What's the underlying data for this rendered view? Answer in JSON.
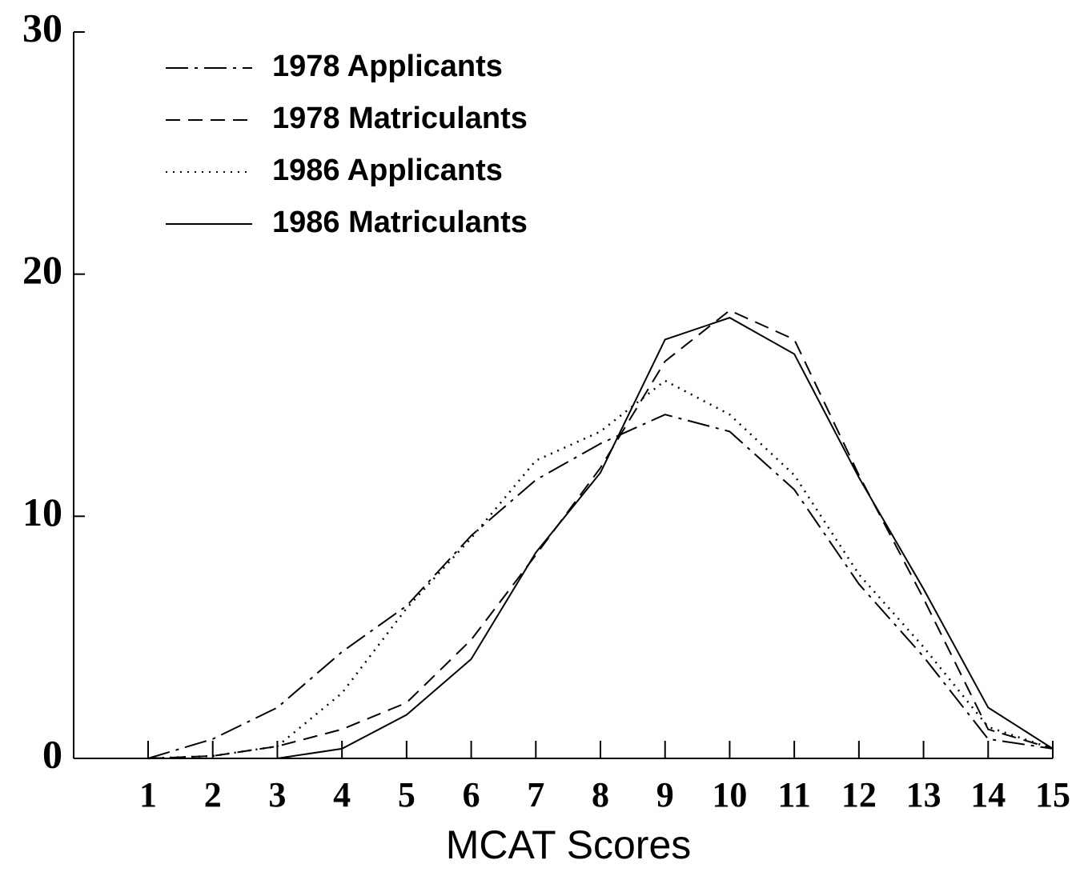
{
  "chart_data": {
    "type": "line",
    "x_label": "MCAT Scores",
    "categories": [
      "1",
      "2",
      "3",
      "4",
      "5",
      "6",
      "7",
      "8",
      "9",
      "10",
      "11",
      "12",
      "13",
      "14",
      "15"
    ],
    "series": [
      {
        "name": "1978 Applicants",
        "color": "#000000",
        "style": "dash-dot",
        "values": [
          0,
          0.8,
          2.1,
          4.4,
          6.3,
          9.2,
          11.5,
          13.0,
          14.2,
          13.5,
          11.1,
          7.2,
          4.2,
          0.8,
          0.4
        ]
      },
      {
        "name": "1978 Matriculants",
        "color": "#000000",
        "style": "dashed",
        "values": [
          0,
          0.1,
          0.5,
          1.2,
          2.3,
          4.9,
          8.4,
          12.0,
          16.4,
          18.5,
          17.3,
          11.7,
          6.6,
          1.2,
          0.4
        ]
      },
      {
        "name": "1986 Applicants",
        "color": "#000000",
        "style": "dotted",
        "values": [
          0,
          0.1,
          0.5,
          2.7,
          6.2,
          9.1,
          12.3,
          13.5,
          15.6,
          14.2,
          11.7,
          7.6,
          4.6,
          1.3,
          0.4
        ]
      },
      {
        "name": "1986 Matriculants",
        "color": "#000000",
        "style": "solid",
        "values": [
          0,
          0,
          0,
          0.4,
          1.8,
          4.1,
          8.5,
          11.8,
          17.3,
          18.2,
          16.7,
          11.6,
          7.0,
          2.1,
          0.4
        ]
      }
    ],
    "ylim": [
      0,
      30
    ],
    "yticks": [
      0,
      10,
      20,
      30
    ],
    "legend": "upper left",
    "grid": false
  }
}
